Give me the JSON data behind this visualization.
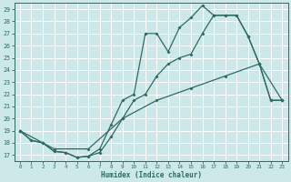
{
  "xlabel": "Humidex (Indice chaleur)",
  "bg_color": "#cce8e8",
  "line_color": "#2d6b60",
  "grid_color": "#b8d8d8",
  "xlim": [
    -0.5,
    23.5
  ],
  "ylim": [
    16.5,
    29.5
  ],
  "yticks": [
    17,
    18,
    19,
    20,
    21,
    22,
    23,
    24,
    25,
    26,
    27,
    28,
    29
  ],
  "xticks": [
    0,
    1,
    2,
    3,
    4,
    5,
    6,
    7,
    8,
    9,
    10,
    11,
    12,
    13,
    14,
    15,
    16,
    17,
    18,
    19,
    20,
    21,
    22,
    23
  ],
  "line_max_x": [
    0,
    1,
    2,
    3,
    4,
    5,
    6,
    7,
    8,
    9,
    10,
    11,
    12,
    13,
    14,
    15,
    16,
    17,
    18,
    19,
    20,
    21,
    22,
    23
  ],
  "line_max_y": [
    19.0,
    18.2,
    18.0,
    17.3,
    17.2,
    16.8,
    16.9,
    17.5,
    19.5,
    21.5,
    22.0,
    27.0,
    27.0,
    25.5,
    27.5,
    28.3,
    29.3,
    28.5,
    28.5,
    28.5,
    26.8,
    24.5,
    21.5,
    21.5
  ],
  "line_min_x": [
    0,
    1,
    2,
    3,
    4,
    5,
    6,
    7,
    8,
    9,
    10,
    11,
    12,
    13,
    14,
    15,
    16,
    17,
    18,
    19,
    20,
    21,
    22,
    23
  ],
  "line_min_y": [
    19.0,
    18.2,
    18.0,
    17.3,
    17.2,
    16.8,
    16.9,
    17.2,
    18.5,
    20.0,
    21.5,
    22.0,
    23.5,
    24.5,
    25.0,
    25.3,
    27.0,
    28.5,
    28.5,
    28.5,
    26.8,
    24.5,
    21.5,
    21.5
  ],
  "line_mean_x": [
    0,
    3,
    6,
    9,
    12,
    15,
    18,
    21,
    23
  ],
  "line_mean_y": [
    19.0,
    17.5,
    17.5,
    20.0,
    21.5,
    22.5,
    23.5,
    24.5,
    21.5
  ]
}
